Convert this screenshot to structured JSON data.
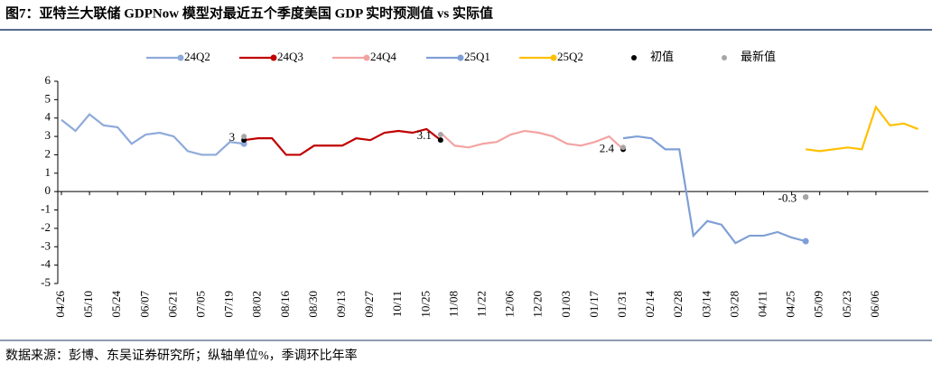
{
  "chart_data": {
    "type": "line",
    "title": "图7：亚特兰大联储 GDPNow 模型对最近五个季度美国 GDP 实时预测值 vs 实际值",
    "source": "数据来源：彭博、东吴证券研究所；纵轴单位%，季调环比年率",
    "categories": [
      "04/26",
      null,
      "05/10",
      null,
      "05/24",
      null,
      "06/07",
      null,
      "06/21",
      null,
      "07/05",
      null,
      "07/19",
      null,
      "08/02",
      null,
      "08/16",
      null,
      "08/30",
      null,
      "09/13",
      null,
      "09/27",
      null,
      "10/11",
      null,
      "10/25",
      null,
      "11/08",
      null,
      "11/22",
      null,
      "12/06",
      null,
      "12/20",
      null,
      "01/03",
      null,
      "01/17",
      null,
      "01/31",
      null,
      "02/14",
      null,
      "02/28",
      null,
      "03/14",
      null,
      "03/28",
      null,
      "04/11",
      null,
      "04/25",
      null,
      "05/09",
      null,
      "05/23",
      null,
      "06/06",
      null,
      null,
      null
    ],
    "ylim": [
      -5,
      6
    ],
    "yticks": [
      -5,
      -4,
      -3,
      -2,
      -1,
      0,
      1,
      2,
      3,
      4,
      5,
      6
    ],
    "series": [
      {
        "name": "24Q2",
        "color": "#8eaadb",
        "values": [
          3.9,
          3.3,
          4.2,
          3.6,
          3.5,
          2.6,
          3.1,
          3.2,
          3.0,
          2.2,
          2.0,
          2.0,
          2.7,
          2.6,
          null,
          null,
          null,
          null,
          null,
          null,
          null,
          null,
          null,
          null,
          null,
          null,
          null,
          null,
          null,
          null,
          null,
          null,
          null,
          null,
          null,
          null,
          null,
          null,
          null,
          null,
          null,
          null,
          null,
          null,
          null,
          null,
          null,
          null,
          null,
          null,
          null,
          null,
          null,
          null,
          null,
          null,
          null,
          null,
          null,
          null,
          null,
          null
        ]
      },
      {
        "name": "24Q3",
        "color": "#c00000",
        "values": [
          null,
          null,
          null,
          null,
          null,
          null,
          null,
          null,
          null,
          null,
          null,
          null,
          null,
          2.8,
          2.9,
          2.9,
          2.0,
          2.0,
          2.5,
          2.5,
          2.5,
          2.9,
          2.8,
          3.2,
          3.3,
          3.2,
          3.4,
          2.8,
          null,
          null,
          null,
          null,
          null,
          null,
          null,
          null,
          null,
          null,
          null,
          null,
          null,
          null,
          null,
          null,
          null,
          null,
          null,
          null,
          null,
          null,
          null,
          null,
          null,
          null,
          null,
          null,
          null,
          null,
          null,
          null,
          null,
          null
        ]
      },
      {
        "name": "24Q4",
        "color": "#f4a3a3",
        "values": [
          null,
          null,
          null,
          null,
          null,
          null,
          null,
          null,
          null,
          null,
          null,
          null,
          null,
          null,
          null,
          null,
          null,
          null,
          null,
          null,
          null,
          null,
          null,
          null,
          null,
          null,
          null,
          3.2,
          2.5,
          2.4,
          2.6,
          2.7,
          3.1,
          3.3,
          3.2,
          3.0,
          2.6,
          2.5,
          2.7,
          3.0,
          2.3,
          null,
          null,
          null,
          null,
          null,
          null,
          null,
          null,
          null,
          null,
          null,
          null,
          null,
          null,
          null,
          null,
          null,
          null,
          null,
          null,
          null
        ]
      },
      {
        "name": "25Q1",
        "color": "#7f9fd6",
        "values": [
          null,
          null,
          null,
          null,
          null,
          null,
          null,
          null,
          null,
          null,
          null,
          null,
          null,
          null,
          null,
          null,
          null,
          null,
          null,
          null,
          null,
          null,
          null,
          null,
          null,
          null,
          null,
          null,
          null,
          null,
          null,
          null,
          null,
          null,
          null,
          null,
          null,
          null,
          null,
          null,
          2.9,
          3.0,
          2.9,
          2.3,
          2.3,
          -2.4,
          -1.6,
          -1.8,
          -2.8,
          -2.4,
          -2.4,
          -2.2,
          -2.5,
          -2.7,
          null,
          null,
          null,
          null,
          null,
          null,
          null,
          null
        ]
      },
      {
        "name": "25Q2",
        "color": "#ffc000",
        "values": [
          null,
          null,
          null,
          null,
          null,
          null,
          null,
          null,
          null,
          null,
          null,
          null,
          null,
          null,
          null,
          null,
          null,
          null,
          null,
          null,
          null,
          null,
          null,
          null,
          null,
          null,
          null,
          null,
          null,
          null,
          null,
          null,
          null,
          null,
          null,
          null,
          null,
          null,
          null,
          null,
          null,
          null,
          null,
          null,
          null,
          null,
          null,
          null,
          null,
          null,
          null,
          null,
          null,
          2.3,
          2.2,
          2.3,
          2.4,
          2.3,
          4.6,
          3.6,
          3.7,
          3.4
        ]
      },
      {
        "name": "初值",
        "color": "#000000",
        "type": "scatter",
        "values": [
          null,
          null,
          null,
          null,
          null,
          null,
          null,
          null,
          null,
          null,
          null,
          null,
          null,
          2.8,
          null,
          null,
          null,
          null,
          null,
          null,
          null,
          null,
          null,
          null,
          null,
          null,
          null,
          2.8,
          null,
          null,
          null,
          null,
          null,
          null,
          null,
          null,
          null,
          null,
          null,
          null,
          2.3,
          null,
          null,
          null,
          null,
          null,
          null,
          null,
          null,
          null,
          null,
          null,
          null,
          -0.3,
          null,
          null,
          null,
          null,
          null,
          null,
          null,
          null
        ]
      },
      {
        "name": "最新值",
        "color": "#a6a6a6",
        "type": "scatter",
        "values": [
          null,
          null,
          null,
          null,
          null,
          null,
          null,
          null,
          null,
          null,
          null,
          null,
          null,
          3.0,
          null,
          null,
          null,
          null,
          null,
          null,
          null,
          null,
          null,
          null,
          null,
          null,
          null,
          3.1,
          null,
          null,
          null,
          null,
          null,
          null,
          null,
          null,
          null,
          null,
          null,
          null,
          2.4,
          null,
          null,
          null,
          null,
          null,
          null,
          null,
          null,
          null,
          null,
          null,
          null,
          -0.3,
          null,
          null,
          null,
          null,
          null,
          null,
          null,
          null
        ],
        "value_labels": [
          null,
          null,
          null,
          null,
          null,
          null,
          null,
          null,
          null,
          null,
          null,
          null,
          null,
          "3",
          null,
          null,
          null,
          null,
          null,
          null,
          null,
          null,
          null,
          null,
          null,
          null,
          null,
          "3.1",
          null,
          null,
          null,
          null,
          null,
          null,
          null,
          null,
          null,
          null,
          null,
          null,
          "2.4",
          null,
          null,
          null,
          null,
          null,
          null,
          null,
          null,
          null,
          null,
          null,
          null,
          "-0.3",
          null,
          null,
          null,
          null,
          null,
          null,
          null,
          null
        ]
      }
    ]
  }
}
